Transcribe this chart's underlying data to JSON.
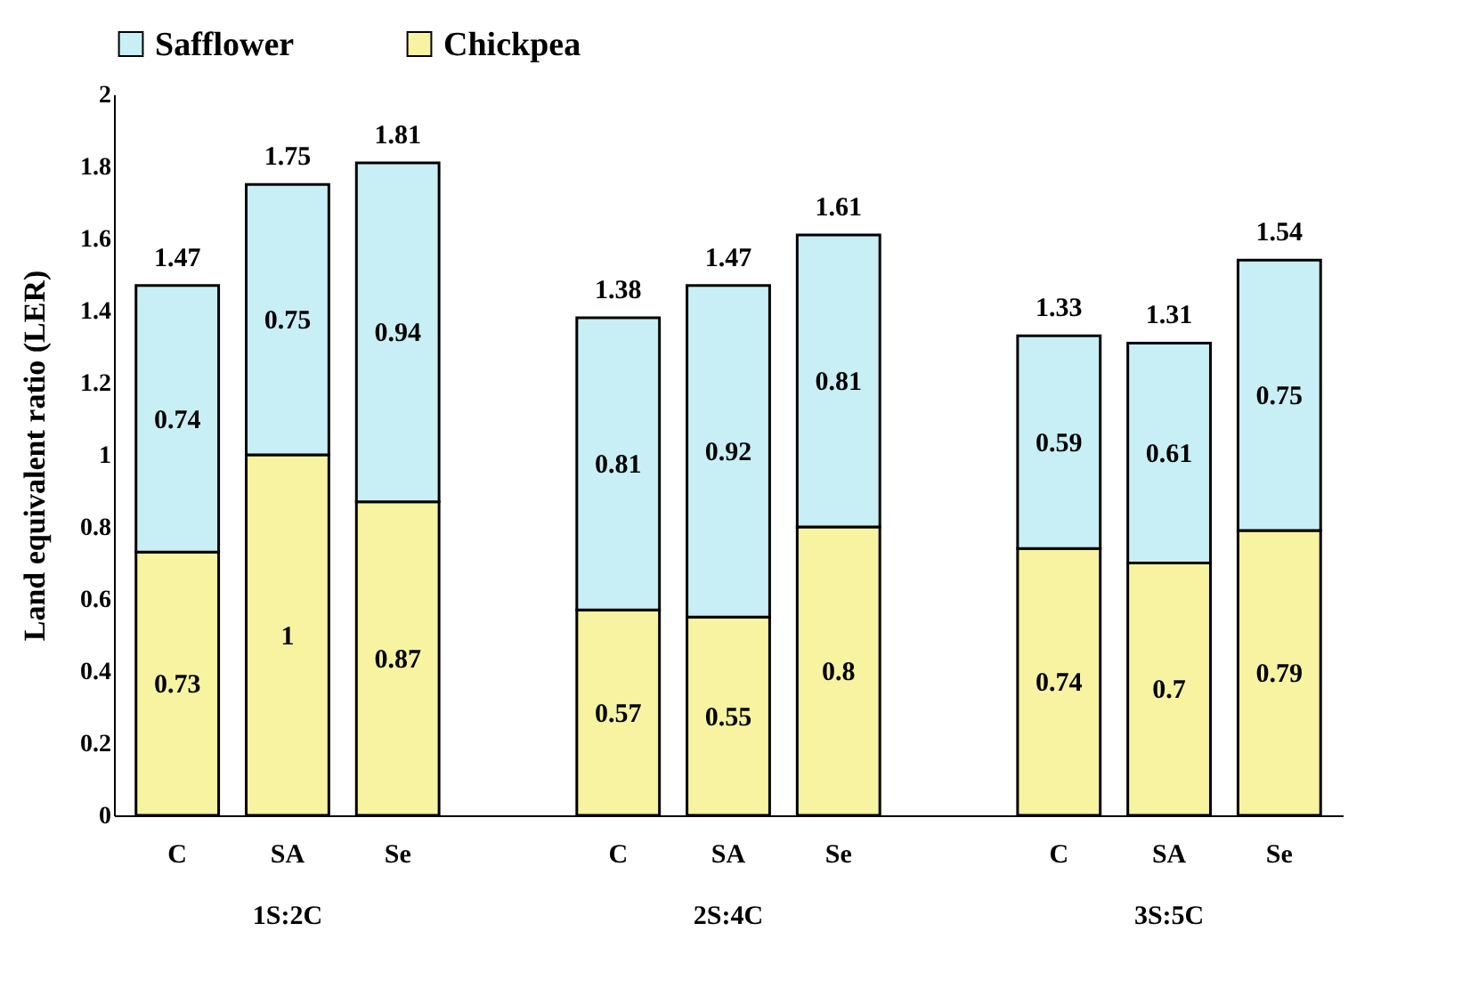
{
  "chart_data": {
    "type": "bar",
    "stacked": true,
    "ylabel": "Land equivalent ratio  (LER)",
    "categories": [
      "C",
      "SA",
      "Se",
      null,
      "C",
      "SA",
      "Se",
      null,
      "C",
      "SA",
      "Se"
    ],
    "series": [
      {
        "name": "Chickpea",
        "color": "#f7f3a0",
        "values": [
          0.73,
          1,
          0.87,
          null,
          0.57,
          0.55,
          0.8,
          null,
          0.74,
          0.7,
          0.79
        ]
      },
      {
        "name": "Safflower",
        "color": "#c8eff5",
        "values": [
          0.74,
          0.75,
          0.94,
          null,
          0.81,
          0.92,
          0.81,
          null,
          0.59,
          0.61,
          0.75
        ]
      }
    ],
    "totals": [
      "1.47",
      "1.75",
      "1.81",
      null,
      "1.38",
      "1.47",
      "1.61",
      null,
      "1.33",
      "1.31",
      "1.54"
    ],
    "annotations": [
      "1S:2C",
      "2S:4C",
      "3S:5C"
    ],
    "ylim": [
      0,
      2
    ],
    "yticks": [
      0,
      0.2,
      0.4,
      0.6,
      0.8,
      1,
      1.2,
      1.4,
      1.6,
      1.8,
      2
    ],
    "data_labels": true,
    "grid": false,
    "legend": "top"
  }
}
